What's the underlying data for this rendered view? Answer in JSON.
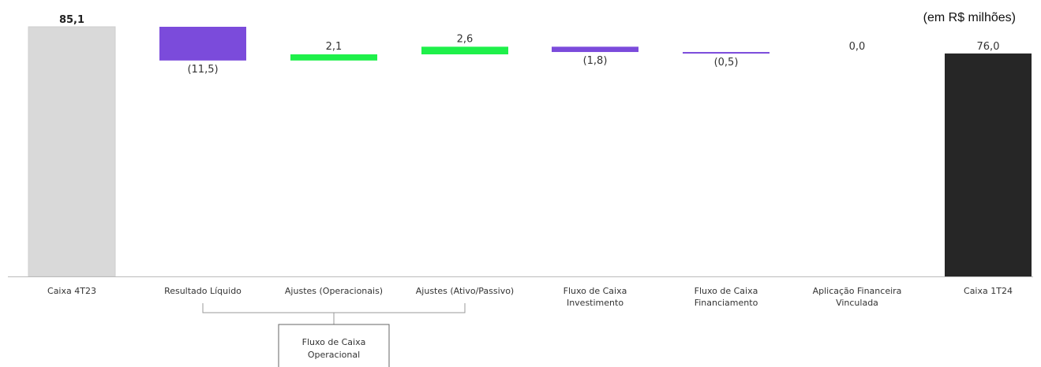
{
  "unit_note": "(em R$ milhões)",
  "colors": {
    "start": "#d9d9d9",
    "end": "#262626",
    "negative": "#7b4bdb",
    "positive": "#1ef04a",
    "axis": "#bbbbbb",
    "bracket": "#999999"
  },
  "chart_data": {
    "type": "bar",
    "subtype": "waterfall",
    "categories": [
      "Caixa 4T23",
      "Resultado Líquido",
      "Ajustes (Operacionais)",
      "Ajustes (Ativo/Passivo)",
      "Fluxo de Caixa Investimento",
      "Fluxo de Caixa Financiamento",
      "Aplicação Financeira Vinculada",
      "Caixa 1T24"
    ],
    "category_lines": [
      [
        "Caixa 4T23"
      ],
      [
        "Resultado Líquido"
      ],
      [
        "Ajustes (Operacionais)"
      ],
      [
        "Ajustes (Ativo/Passivo)"
      ],
      [
        "Fluxo de Caixa",
        "Investimento"
      ],
      [
        "Fluxo de Caixa",
        "Financiamento"
      ],
      [
        "Aplicação Financeira",
        "Vinculada"
      ],
      [
        "Caixa 1T24"
      ]
    ],
    "values": [
      85.1,
      -11.5,
      2.1,
      2.6,
      -1.8,
      -0.5,
      0.0,
      76.0
    ],
    "kinds": [
      "total",
      "delta",
      "delta",
      "delta",
      "delta",
      "delta",
      "delta",
      "total"
    ],
    "value_labels": [
      "85,1",
      "(11,5)",
      "2,1",
      "2,6",
      "(1,8)",
      "(0,5)",
      "0,0",
      "76,0"
    ],
    "ylim": [
      0,
      85.1
    ],
    "grid": false,
    "group": {
      "label_lines": [
        "Fluxo de Caixa",
        "Operacional"
      ],
      "from_index": 1,
      "to_index": 3
    }
  }
}
